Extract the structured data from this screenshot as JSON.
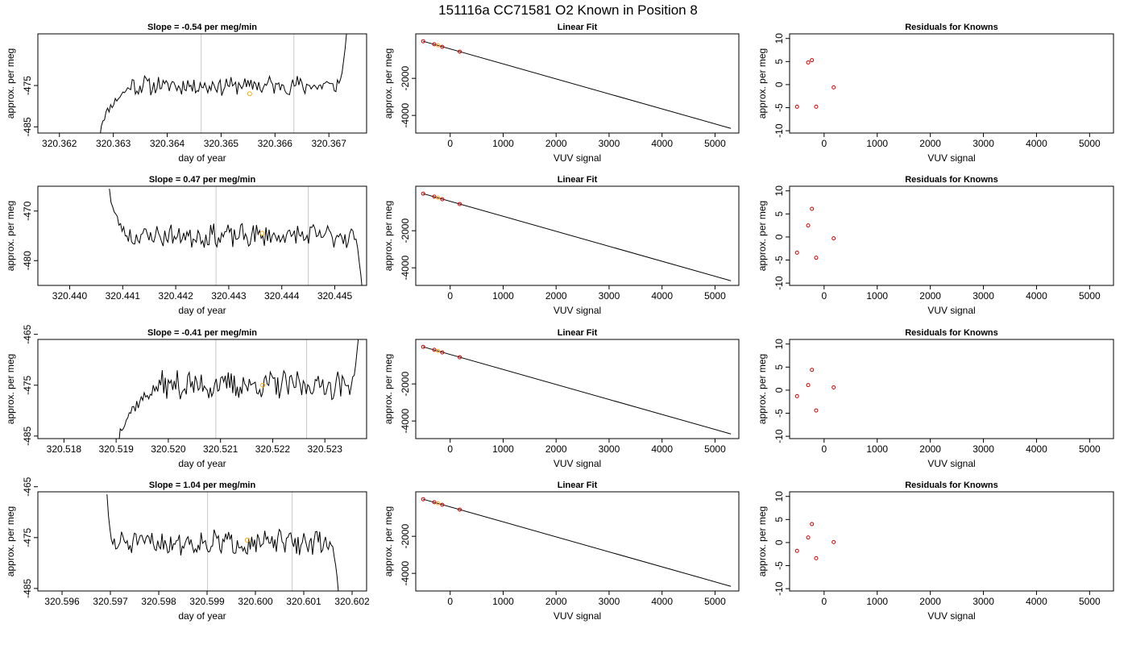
{
  "figure_title": "151116a     CC71581   O2 Known in Position  8",
  "chart_data": [
    {
      "type": "line",
      "panel": "timeseries",
      "row": 1,
      "title": "Slope =  -0.54  per meg/min",
      "xlabel": "day of year",
      "ylabel": "approx. per meg",
      "xlim": [
        320.3616,
        320.3677
      ],
      "ylim": [
        -486.5,
        -462.5
      ],
      "x_ticks": [
        "320.362",
        "320.363",
        "320.364",
        "320.365",
        "320.366",
        "320.367"
      ],
      "y_ticks": [
        "-485",
        "-475"
      ],
      "vlines": [
        320.36463,
        320.36635
      ],
      "marker": {
        "x": 320.36553,
        "y": -477.0
      },
      "trace": {
        "x_start": 320.36275,
        "x_end": 320.36733,
        "rise_end": 320.36335,
        "plateau": -475,
        "amplitude": 2.0,
        "seed": 11,
        "start": -487,
        "end": -462
      }
    },
    {
      "type": "scatter",
      "panel": "fit",
      "row": 1,
      "title": "Linear Fit",
      "xlabel": "VUV signal",
      "ylabel": "approx. per meg",
      "xlim": [
        -650,
        5450
      ],
      "ylim": [
        -4950,
        400
      ],
      "x_ticks": [
        "0",
        "1000",
        "2000",
        "3000",
        "4000",
        "5000"
      ],
      "y_ticks": [
        "-4000",
        "-2000"
      ],
      "line": {
        "x": [
          -510,
          5300
        ],
        "y": [
          0,
          -4700
        ]
      },
      "points_x": [
        -510,
        -300,
        -230,
        -150,
        180
      ],
      "points_y": [
        0,
        -160,
        -220,
        -300,
        -560
      ],
      "orange_points_x": [
        -230
      ]
    },
    {
      "type": "scatter",
      "panel": "residuals",
      "row": 1,
      "title": "Residuals for Knowns",
      "xlabel": "VUV signal",
      "ylabel": "approx. per meg",
      "xlim": [
        -650,
        5450
      ],
      "ylim": [
        -10.5,
        11
      ],
      "x_ticks": [
        "0",
        "1000",
        "2000",
        "3000",
        "4000",
        "5000"
      ],
      "y_ticks": [
        "-10",
        "-5",
        "0",
        "5",
        "10"
      ],
      "points_x": [
        -510,
        -300,
        -230,
        -150,
        180
      ],
      "points_y": [
        -4.8,
        4.8,
        5.3,
        -4.8,
        -0.6
      ]
    },
    {
      "type": "line",
      "panel": "timeseries",
      "row": 2,
      "title": "Slope =  0.47  per meg/min",
      "xlabel": "day of year",
      "ylabel": "approx. per meg",
      "xlim": [
        320.4394,
        320.4456
      ],
      "ylim": [
        -485,
        -465
      ],
      "x_ticks": [
        "320.440",
        "320.441",
        "320.442",
        "320.443",
        "320.444",
        "320.445"
      ],
      "y_ticks": [
        "-480",
        "-470"
      ],
      "vlines": [
        320.44276,
        320.4445
      ],
      "marker": {
        "x": 320.44363,
        "y": -474.5
      },
      "trace": {
        "x_start": 320.44075,
        "x_end": 320.44552,
        "rise_end": 320.44108,
        "plateau": -475,
        "amplitude": 2.0,
        "seed": 23,
        "start": -465,
        "end": -486
      }
    },
    {
      "type": "scatter",
      "panel": "fit",
      "row": 2,
      "title": "Linear Fit",
      "xlabel": "VUV signal",
      "ylabel": "approx. per meg",
      "xlim": [
        -650,
        5450
      ],
      "ylim": [
        -4950,
        400
      ],
      "x_ticks": [
        "0",
        "1000",
        "2000",
        "3000",
        "4000",
        "5000"
      ],
      "y_ticks": [
        "-4000",
        "-2000"
      ],
      "line": {
        "x": [
          -510,
          5300
        ],
        "y": [
          0,
          -4700
        ]
      },
      "points_x": [
        -510,
        -300,
        -230,
        -150,
        180
      ],
      "points_y": [
        0,
        -160,
        -220,
        -300,
        -560
      ],
      "orange_points_x": [
        -230
      ]
    },
    {
      "type": "scatter",
      "panel": "residuals",
      "row": 2,
      "title": "Residuals for Knowns",
      "xlabel": "VUV signal",
      "ylabel": "approx. per meg",
      "xlim": [
        -650,
        5450
      ],
      "ylim": [
        -10.5,
        11
      ],
      "x_ticks": [
        "0",
        "1000",
        "2000",
        "3000",
        "4000",
        "5000"
      ],
      "y_ticks": [
        "-10",
        "-5",
        "0",
        "5",
        "10"
      ],
      "points_x": [
        -510,
        -300,
        -230,
        -150,
        180
      ],
      "points_y": [
        -3.4,
        2.5,
        6.1,
        -4.5,
        -0.3
      ]
    },
    {
      "type": "line",
      "panel": "timeseries",
      "row": 3,
      "title": "Slope =  -0.41  per meg/min",
      "xlabel": "day of year",
      "ylabel": "approx. per meg",
      "xlim": [
        320.5175,
        320.5238
      ],
      "ylim": [
        -485.5,
        -466
      ],
      "x_ticks": [
        "320.518",
        "320.519",
        "320.520",
        "320.521",
        "320.522",
        "320.523"
      ],
      "y_ticks": [
        "-485",
        "-475",
        "-465"
      ],
      "vlines": [
        320.52091,
        320.52265
      ],
      "marker": {
        "x": 320.52181,
        "y": -475.0
      },
      "trace": {
        "x_start": 320.51905,
        "x_end": 320.52365,
        "rise_end": 320.51985,
        "plateau": -475,
        "amplitude": 2.5,
        "seed": 37,
        "start": -486,
        "end": -465
      }
    },
    {
      "type": "scatter",
      "panel": "fit",
      "row": 3,
      "title": "Linear Fit",
      "xlabel": "VUV signal",
      "ylabel": "approx. per meg",
      "xlim": [
        -650,
        5450
      ],
      "ylim": [
        -4950,
        400
      ],
      "x_ticks": [
        "0",
        "1000",
        "2000",
        "3000",
        "4000",
        "5000"
      ],
      "y_ticks": [
        "-4000",
        "-2000"
      ],
      "line": {
        "x": [
          -510,
          5300
        ],
        "y": [
          0,
          -4700
        ]
      },
      "points_x": [
        -510,
        -300,
        -230,
        -150,
        180
      ],
      "points_y": [
        0,
        -160,
        -220,
        -300,
        -560
      ],
      "orange_points_x": [
        -230
      ]
    },
    {
      "type": "scatter",
      "panel": "residuals",
      "row": 3,
      "title": "Residuals for Knowns",
      "xlabel": "VUV signal",
      "ylabel": "approx. per meg",
      "xlim": [
        -650,
        5450
      ],
      "ylim": [
        -10.5,
        11
      ],
      "x_ticks": [
        "0",
        "1000",
        "2000",
        "3000",
        "4000",
        "5000"
      ],
      "y_ticks": [
        "-10",
        "-5",
        "0",
        "5",
        "10"
      ],
      "points_x": [
        -510,
        -300,
        -230,
        -150,
        180
      ],
      "points_y": [
        -1.3,
        1.1,
        4.4,
        -4.4,
        0.6
      ]
    },
    {
      "type": "line",
      "panel": "timeseries",
      "row": 4,
      "title": "Slope =  1.04  per meg/min",
      "xlabel": "day of year",
      "ylabel": "approx. per meg",
      "xlim": [
        320.5955,
        320.6023
      ],
      "ylim": [
        -485.5,
        -466
      ],
      "x_ticks": [
        "320.596",
        "320.597",
        "320.598",
        "320.599",
        "320.600",
        "320.601",
        "320.602"
      ],
      "y_ticks": [
        "-485",
        "-475",
        "-465"
      ],
      "vlines": [
        320.59901,
        320.60076
      ],
      "marker": {
        "x": 320.59983,
        "y": -475.5
      },
      "trace": {
        "x_start": 320.59693,
        "x_end": 320.60172,
        "rise_end": 320.59703,
        "plateau": -476,
        "amplitude": 2.0,
        "seed": 51,
        "start": -466,
        "end": -486
      }
    },
    {
      "type": "scatter",
      "panel": "fit",
      "row": 4,
      "title": "Linear Fit",
      "xlabel": "VUV signal",
      "ylabel": "approx. per meg",
      "xlim": [
        -650,
        5450
      ],
      "ylim": [
        -4950,
        400
      ],
      "x_ticks": [
        "0",
        "1000",
        "2000",
        "3000",
        "4000",
        "5000"
      ],
      "y_ticks": [
        "-4000",
        "-2000"
      ],
      "line": {
        "x": [
          -510,
          5300
        ],
        "y": [
          0,
          -4700
        ]
      },
      "points_x": [
        -510,
        -300,
        -230,
        -150,
        180
      ],
      "points_y": [
        0,
        -160,
        -220,
        -300,
        -560
      ],
      "orange_points_x": [
        -230
      ]
    },
    {
      "type": "scatter",
      "panel": "residuals",
      "row": 4,
      "title": "Residuals for Knowns",
      "xlabel": "VUV signal",
      "ylabel": "approx. per meg",
      "xlim": [
        -650,
        5450
      ],
      "ylim": [
        -10.5,
        11
      ],
      "x_ticks": [
        "0",
        "1000",
        "2000",
        "3000",
        "4000",
        "5000"
      ],
      "y_ticks": [
        "-10",
        "-5",
        "0",
        "5",
        "10"
      ],
      "points_x": [
        -510,
        -300,
        -230,
        -150,
        180
      ],
      "points_y": [
        -1.8,
        1.1,
        4.0,
        -3.4,
        0.1
      ]
    }
  ],
  "colors": {
    "line": "#000000",
    "vline": "#c8c8c8",
    "marker": "#ffa500",
    "point": "#cc0000",
    "frame": "#000000"
  }
}
